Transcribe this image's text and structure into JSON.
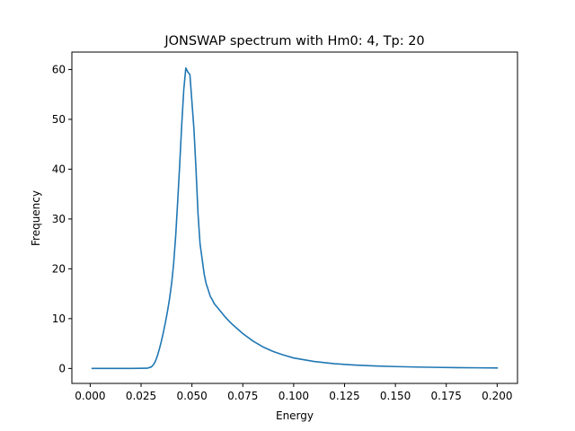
{
  "chart_data": {
    "type": "line",
    "title": "JONSWAP spectrum with Hm0: 4, Tp: 20",
    "xlabel": "Energy",
    "ylabel": "Frequency",
    "xlim": [
      -0.009,
      0.21
    ],
    "ylim": [
      -3.0,
      63.5
    ],
    "xticks": [
      0.0,
      0.025,
      0.05,
      0.075,
      0.1,
      0.125,
      0.15,
      0.175,
      0.2
    ],
    "xtick_labels": [
      "0.000",
      "0.025",
      "0.050",
      "0.075",
      "0.100",
      "0.125",
      "0.150",
      "0.175",
      "0.200"
    ],
    "yticks": [
      0,
      10,
      20,
      30,
      40,
      50,
      60
    ],
    "ytick_labels": [
      "0",
      "10",
      "20",
      "30",
      "40",
      "50",
      "60"
    ],
    "grid": false,
    "line_color": "#1f77b4",
    "series": [
      {
        "x": [
          0.001,
          0.01,
          0.02,
          0.028,
          0.03,
          0.031,
          0.032,
          0.033,
          0.034,
          0.035,
          0.036,
          0.037,
          0.038,
          0.039,
          0.04,
          0.041,
          0.042,
          0.043,
          0.044,
          0.045,
          0.046,
          0.047,
          0.048,
          0.049,
          0.051,
          0.052,
          0.053,
          0.054,
          0.055,
          0.056,
          0.057,
          0.058,
          0.059,
          0.06,
          0.061,
          0.062,
          0.064,
          0.066,
          0.068,
          0.07,
          0.075,
          0.08,
          0.085,
          0.09,
          0.095,
          0.1,
          0.11,
          0.12,
          0.13,
          0.14,
          0.15,
          0.16,
          0.17,
          0.18,
          0.19,
          0.2
        ],
        "y": [
          0,
          0,
          0,
          0.05,
          0.3,
          0.7,
          1.4,
          2.5,
          3.9,
          5.5,
          7.3,
          9.3,
          11.5,
          14.0,
          17.0,
          21.0,
          26.5,
          33.5,
          41.0,
          49.0,
          56.0,
          60.3,
          59.5,
          59.0,
          48.0,
          40.0,
          31.0,
          25.0,
          22.0,
          19.0,
          17.0,
          15.8,
          14.5,
          13.8,
          13.0,
          12.5,
          11.5,
          10.5,
          9.6,
          8.8,
          7.0,
          5.5,
          4.3,
          3.4,
          2.7,
          2.1,
          1.4,
          0.95,
          0.68,
          0.5,
          0.38,
          0.29,
          0.22,
          0.17,
          0.13,
          0.1
        ]
      }
    ]
  }
}
